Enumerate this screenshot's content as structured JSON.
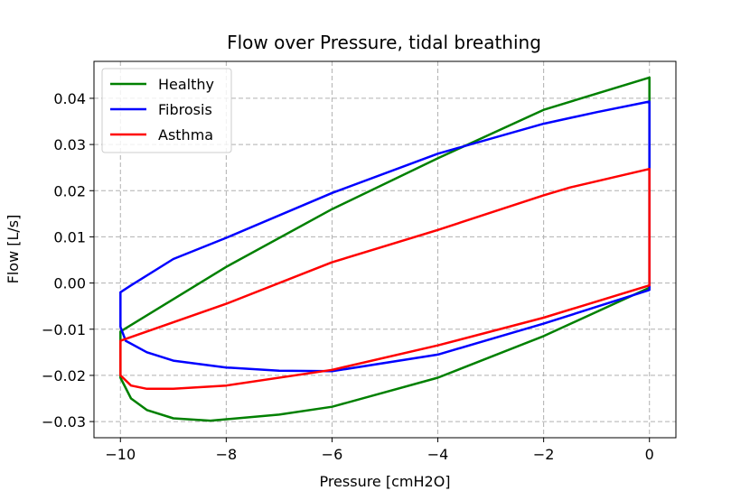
{
  "chart_data": {
    "type": "line",
    "title": "Flow over Pressure, tidal breathing",
    "xlabel": "Pressure [cmH2O]",
    "ylabel": "Flow [L/s]",
    "xlim": [
      -10.5,
      0.5
    ],
    "ylim": [
      -0.0335,
      0.048
    ],
    "grid": true,
    "grid_style": "dashed",
    "legend_position": "top-left",
    "x_ticks": [
      -10,
      -8,
      -6,
      -4,
      -2,
      0
    ],
    "x_tick_labels": [
      "−10",
      "−8",
      "−6",
      "−4",
      "−2",
      "0"
    ],
    "y_ticks": [
      -0.03,
      -0.02,
      -0.01,
      0.0,
      0.01,
      0.02,
      0.03,
      0.04
    ],
    "y_tick_labels": [
      "−0.03",
      "−0.02",
      "−0.01",
      "0.00",
      "0.01",
      "0.02",
      "0.03",
      "0.04"
    ],
    "series": [
      {
        "name": "Healthy",
        "color": "#008000",
        "upper": {
          "x": [
            -10,
            -8,
            -6,
            -4,
            -2,
            0
          ],
          "y": [
            -0.0105,
            0.0035,
            0.016,
            0.027,
            0.0375,
            0.0445
          ]
        },
        "lower": {
          "x": [
            -10,
            -9.8,
            -9.5,
            -9,
            -8.3,
            -7,
            -6,
            -4,
            -2,
            0
          ],
          "y": [
            -0.0205,
            -0.025,
            -0.0275,
            -0.0293,
            -0.0298,
            -0.0285,
            -0.0268,
            -0.0205,
            -0.0115,
            -0.001
          ]
        }
      },
      {
        "name": "Fibrosis",
        "color": "#0000ff",
        "upper": {
          "x": [
            -10,
            -9.8,
            -9,
            -8,
            -6,
            -4,
            -2,
            -1,
            0
          ],
          "y": [
            -0.002,
            -0.0005,
            0.0052,
            0.0098,
            0.0195,
            0.028,
            0.0345,
            0.037,
            0.0393
          ]
        },
        "lower": {
          "x": [
            -10,
            -9.9,
            -9.5,
            -9,
            -8,
            -7,
            -6,
            -4,
            -2,
            0
          ],
          "y": [
            -0.0095,
            -0.0125,
            -0.015,
            -0.0168,
            -0.0183,
            -0.019,
            -0.0191,
            -0.0155,
            -0.0088,
            -0.0015
          ]
        }
      },
      {
        "name": "Asthma",
        "color": "#ff0000",
        "upper": {
          "x": [
            -10,
            -8,
            -6,
            -4,
            -2,
            -1.5,
            0
          ],
          "y": [
            -0.0125,
            -0.0045,
            0.0045,
            0.0115,
            0.019,
            0.0207,
            0.0247
          ]
        },
        "lower": {
          "x": [
            -10,
            -9.8,
            -9.5,
            -9,
            -8,
            -6,
            -4,
            -2,
            0
          ],
          "y": [
            -0.02,
            -0.0222,
            -0.0229,
            -0.0229,
            -0.0222,
            -0.0188,
            -0.0135,
            -0.0075,
            -0.0005
          ]
        }
      }
    ]
  }
}
